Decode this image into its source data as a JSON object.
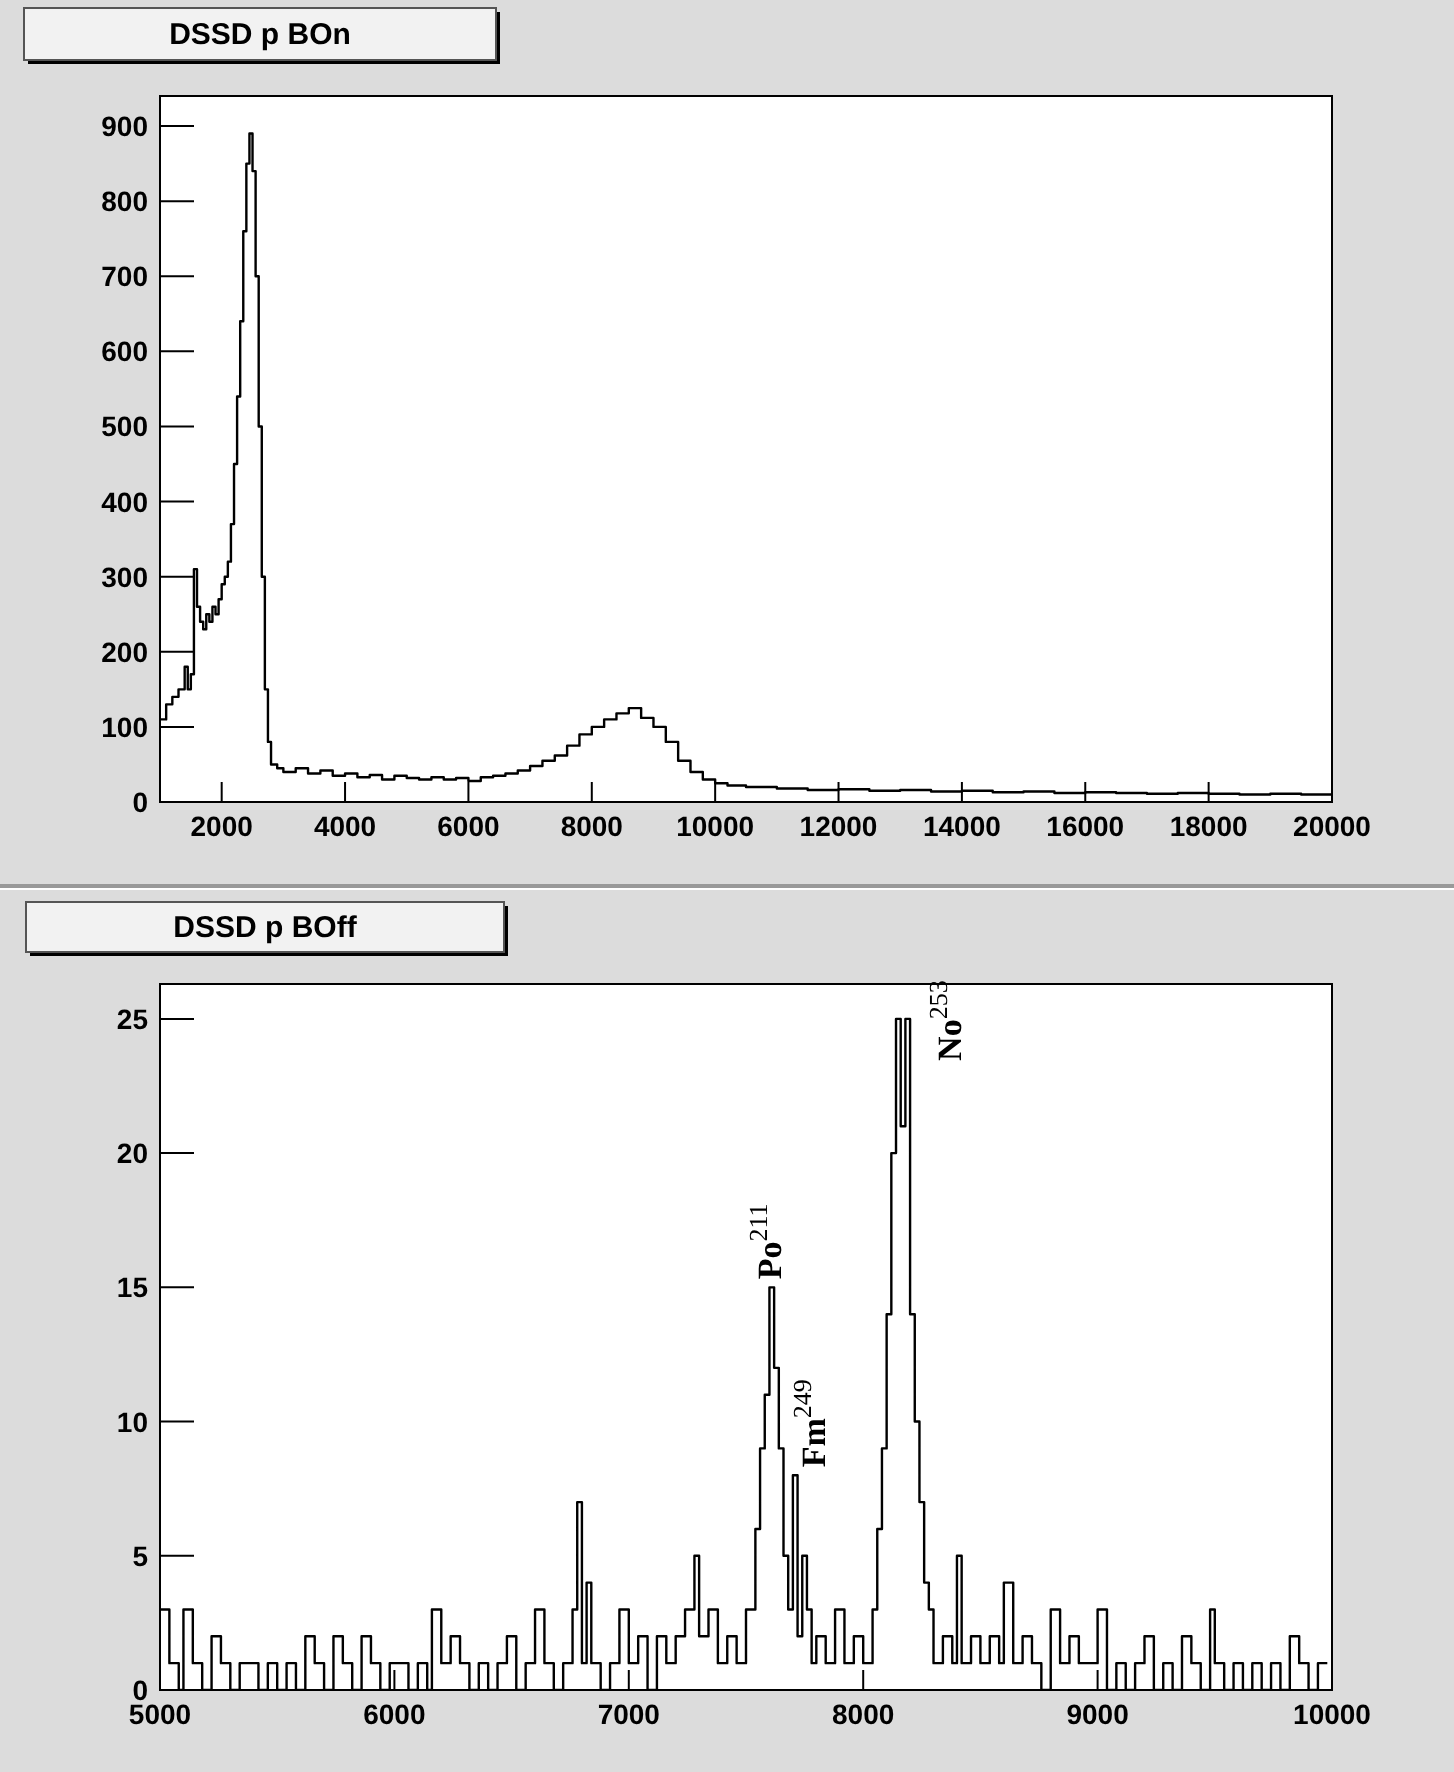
{
  "chart_data": [
    {
      "type": "step",
      "title": "DSSD p BOn",
      "color": "#000000",
      "xlim": [
        1000,
        20000
      ],
      "ylim": [
        0,
        940
      ],
      "xticks": [
        2000,
        4000,
        6000,
        8000,
        10000,
        12000,
        14000,
        16000,
        18000,
        20000
      ],
      "yticks": [
        0,
        100,
        200,
        300,
        400,
        500,
        600,
        700,
        800,
        900
      ],
      "x": [
        1000,
        1100,
        1200,
        1300,
        1400,
        1450,
        1500,
        1550,
        1600,
        1650,
        1700,
        1750,
        1800,
        1850,
        1900,
        1950,
        2000,
        2050,
        2100,
        2150,
        2200,
        2250,
        2300,
        2350,
        2400,
        2450,
        2500,
        2550,
        2600,
        2650,
        2700,
        2750,
        2800,
        2900,
        3000,
        3200,
        3400,
        3600,
        3800,
        4000,
        4200,
        4400,
        4600,
        4800,
        5000,
        5200,
        5400,
        5600,
        5800,
        6000,
        6200,
        6400,
        6600,
        6800,
        7000,
        7200,
        7400,
        7600,
        7800,
        8000,
        8200,
        8400,
        8600,
        8800,
        9000,
        9200,
        9400,
        9600,
        9800,
        10000,
        10200,
        10500,
        11000,
        11500,
        12000,
        12500,
        13000,
        13500,
        14000,
        14500,
        15000,
        15500,
        16000,
        16500,
        17000,
        17500,
        18000,
        18500,
        19000,
        19500,
        20000
      ],
      "values": [
        110,
        130,
        140,
        150,
        180,
        150,
        170,
        310,
        260,
        240,
        230,
        250,
        240,
        260,
        250,
        270,
        290,
        300,
        320,
        370,
        450,
        540,
        640,
        760,
        850,
        890,
        840,
        700,
        500,
        300,
        150,
        80,
        50,
        45,
        40,
        45,
        38,
        42,
        35,
        38,
        33,
        36,
        30,
        35,
        32,
        30,
        33,
        30,
        32,
        28,
        33,
        35,
        38,
        42,
        48,
        55,
        62,
        75,
        90,
        100,
        110,
        118,
        125,
        112,
        100,
        80,
        55,
        40,
        30,
        25,
        22,
        20,
        18,
        16,
        17,
        15,
        16,
        14,
        15,
        13,
        14,
        12,
        13,
        12,
        11,
        12,
        11,
        10,
        11,
        10,
        11
      ]
    },
    {
      "type": "step",
      "title": "DSSD p BOff",
      "color": "#000000",
      "xlim": [
        5000,
        10000
      ],
      "ylim": [
        0,
        26.3
      ],
      "xticks": [
        5000,
        6000,
        7000,
        8000,
        9000,
        10000
      ],
      "yticks": [
        0,
        5,
        10,
        15,
        20,
        25
      ],
      "annotations": [
        {
          "text": "Po$^{211}$",
          "x": 7600,
          "y": 15
        },
        {
          "text": "Fm$^{249}$",
          "x": 7700,
          "y": 8
        },
        {
          "text": "No$^{253}$",
          "x": 8180,
          "y": 25
        }
      ],
      "x": [
        5000,
        5040,
        5080,
        5100,
        5140,
        5180,
        5220,
        5260,
        5300,
        5340,
        5380,
        5420,
        5460,
        5500,
        5540,
        5580,
        5620,
        5660,
        5700,
        5740,
        5780,
        5820,
        5860,
        5900,
        5940,
        5980,
        6020,
        6060,
        6100,
        6140,
        6160,
        6200,
        6240,
        6280,
        6320,
        6360,
        6400,
        6440,
        6480,
        6520,
        6560,
        6600,
        6640,
        6680,
        6720,
        6760,
        6780,
        6800,
        6820,
        6840,
        6880,
        6920,
        6960,
        7000,
        7040,
        7080,
        7120,
        7160,
        7200,
        7240,
        7280,
        7300,
        7340,
        7380,
        7420,
        7460,
        7500,
        7540,
        7560,
        7580,
        7600,
        7620,
        7640,
        7660,
        7680,
        7700,
        7720,
        7740,
        7760,
        7780,
        7800,
        7840,
        7880,
        7920,
        7960,
        8000,
        8040,
        8060,
        8080,
        8100,
        8120,
        8140,
        8160,
        8180,
        8200,
        8220,
        8240,
        8260,
        8280,
        8300,
        8340,
        8380,
        8400,
        8420,
        8460,
        8500,
        8540,
        8580,
        8600,
        8640,
        8680,
        8720,
        8760,
        8800,
        8840,
        8880,
        8920,
        8960,
        9000,
        9040,
        9080,
        9120,
        9160,
        9200,
        9240,
        9280,
        9320,
        9360,
        9400,
        9440,
        9480,
        9500,
        9540,
        9580,
        9620,
        9660,
        9700,
        9740,
        9780,
        9820,
        9860,
        9900,
        9940,
        9980
      ],
      "values": [
        3,
        1,
        0,
        3,
        1,
        0,
        2,
        1,
        0,
        1,
        1,
        0,
        1,
        0,
        1,
        0,
        2,
        1,
        0,
        2,
        1,
        0,
        2,
        1,
        0,
        1,
        1,
        0,
        1,
        0,
        3,
        1,
        2,
        1,
        0,
        1,
        0,
        1,
        2,
        0,
        1,
        3,
        1,
        0,
        1,
        3,
        7,
        1,
        4,
        1,
        0,
        1,
        3,
        1,
        2,
        0,
        2,
        1,
        2,
        3,
        5,
        2,
        3,
        1,
        2,
        1,
        3,
        6,
        9,
        11,
        15,
        12,
        9,
        5,
        3,
        8,
        2,
        5,
        3,
        1,
        2,
        1,
        3,
        1,
        2,
        1,
        3,
        6,
        9,
        14,
        20,
        25,
        21,
        25,
        14,
        10,
        7,
        4,
        3,
        1,
        2,
        1,
        5,
        1,
        2,
        1,
        2,
        1,
        4,
        1,
        2,
        1,
        0,
        3,
        1,
        2,
        1,
        1,
        3,
        0,
        1,
        0,
        1,
        2,
        0,
        1,
        0,
        2,
        1,
        0,
        3,
        1,
        0,
        1,
        0,
        1,
        0,
        1,
        0,
        2,
        1,
        0,
        1,
        1
      ]
    }
  ]
}
